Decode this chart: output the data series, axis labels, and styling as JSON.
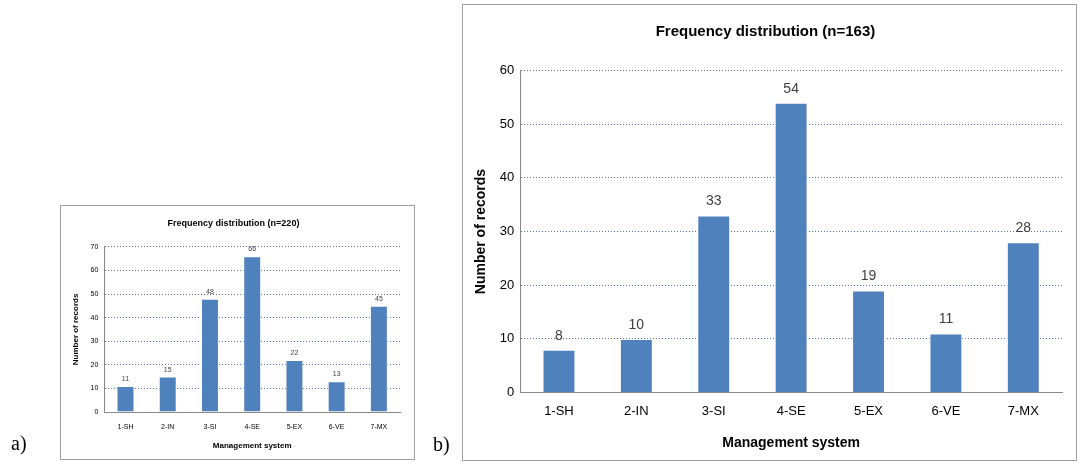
{
  "chart_data": [
    {
      "type": "bar",
      "title": "Frequency distribution (n=220)",
      "xlabel": "Management system",
      "ylabel": "Number of records",
      "categories": [
        "1-SH",
        "2-IN",
        "3-SI",
        "4-SE",
        "5-EX",
        "6-VE",
        "7-MX"
      ],
      "values": [
        11,
        15,
        48,
        66,
        22,
        13,
        45
      ],
      "color": "#4f81bd",
      "ylim": [
        0,
        70
      ],
      "yticks": [
        0,
        10,
        20,
        30,
        40,
        50,
        60,
        70
      ],
      "grid": "y",
      "data_labels": true,
      "annotations": [
        "a)"
      ]
    },
    {
      "type": "bar",
      "title": "Frequency distribution (n=163)",
      "xlabel": "Management system",
      "ylabel": "Number of records",
      "categories": [
        "1-SH",
        "2-IN",
        "3-SI",
        "4-SE",
        "5-EX",
        "6-VE",
        "7-MX"
      ],
      "values": [
        8,
        10,
        33,
        54,
        19,
        11,
        28
      ],
      "color": "#4f81bd",
      "ylim": [
        0,
        60
      ],
      "yticks": [
        0,
        10,
        20,
        30,
        40,
        50,
        60
      ],
      "grid": "y",
      "data_labels": true,
      "annotations": [
        "b)"
      ]
    }
  ]
}
